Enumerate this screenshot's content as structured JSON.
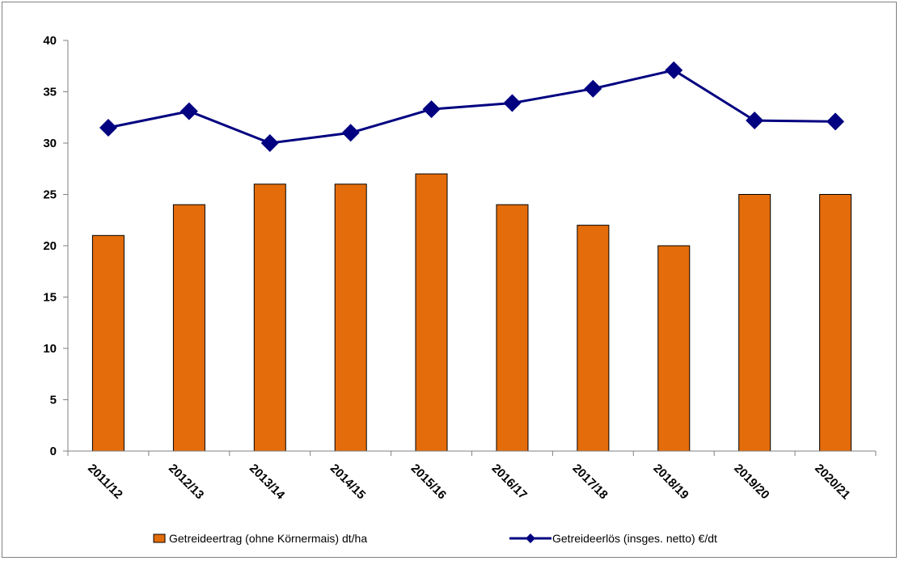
{
  "chart_data": {
    "type": "bar",
    "title": "",
    "xlabel": "",
    "ylabel": "",
    "categories": [
      "2011/12",
      "2012/13",
      "2013/14",
      "2014/15",
      "2015/16",
      "2016/17",
      "2017/18",
      "2018/19",
      "2019/20",
      "2020/21"
    ],
    "ylim": [
      0,
      40
    ],
    "yticks": [
      0,
      5,
      10,
      15,
      20,
      25,
      30,
      35,
      40
    ],
    "grid": false,
    "legend_position": "bottom",
    "series": [
      {
        "name": "Getreideertrag (ohne Körnermais) dt/ha",
        "type": "bar",
        "color": "#E46C0A",
        "values": [
          21,
          24,
          26,
          26,
          27,
          24,
          22,
          20,
          25,
          25
        ]
      },
      {
        "name": "Getreideerlös (insges. netto) €/dt",
        "type": "line",
        "marker": "diamond",
        "color": "#000080",
        "values": [
          31.5,
          33.1,
          30.0,
          31.0,
          33.3,
          33.9,
          35.3,
          37.1,
          32.2,
          32.1
        ]
      }
    ]
  }
}
